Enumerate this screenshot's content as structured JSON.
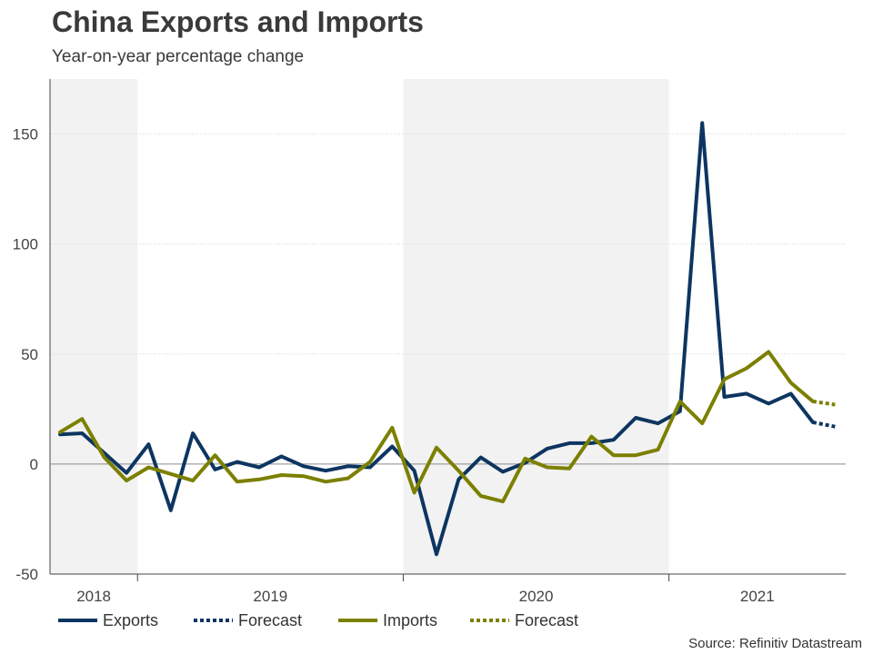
{
  "chart_data": {
    "type": "line",
    "title": "China Exports and Imports",
    "subtitle": "Year-on-year percentage change",
    "source": "Source: Refinitiv Datastream",
    "ylim": [
      -50,
      175
    ],
    "yticks": [
      -50,
      0,
      50,
      100,
      150
    ],
    "year_labels": [
      "2018",
      "2019",
      "2020",
      "2021"
    ],
    "shaded_years": [
      "2018",
      "2020"
    ],
    "x_start": "2018-09",
    "series": [
      {
        "name": "Exports",
        "color": "#0d3561",
        "style": "solid",
        "values": [
          13.5,
          14.0,
          5.0,
          -4.0,
          9.0,
          -21.0,
          14.0,
          -2.5,
          1.0,
          -1.5,
          3.5,
          -1.0,
          -3.0,
          -1.0,
          -1.5,
          8.0,
          -3.0,
          -41.0,
          -7.0,
          3.0,
          -3.5,
          0.5,
          7.0,
          9.5,
          9.5,
          11.0,
          21.0,
          18.5,
          24.0,
          155.0,
          30.5,
          32.0,
          27.5,
          32.0,
          19.0
        ]
      },
      {
        "name": "Forecast",
        "color": "#0d3561",
        "style": "dotted",
        "start_index": 34,
        "values": [
          19.0,
          17.0
        ]
      },
      {
        "name": "Imports",
        "color": "#7c8000",
        "style": "solid",
        "values": [
          14.5,
          20.5,
          3.0,
          -7.5,
          -1.5,
          -4.5,
          -7.5,
          4.0,
          -8.0,
          -7.0,
          -5.0,
          -5.5,
          -8.0,
          -6.5,
          1.0,
          16.5,
          -13.0,
          7.5,
          -3.0,
          -14.5,
          -17.0,
          2.5,
          -1.5,
          -2.0,
          12.5,
          4.0,
          4.0,
          6.5,
          28.5,
          18.5,
          38.5,
          43.5,
          51.0,
          37.0,
          28.5
        ]
      },
      {
        "name": "Forecast",
        "color": "#7c8000",
        "style": "dotted",
        "start_index": 34,
        "values": [
          28.5,
          27.0
        ]
      }
    ]
  }
}
